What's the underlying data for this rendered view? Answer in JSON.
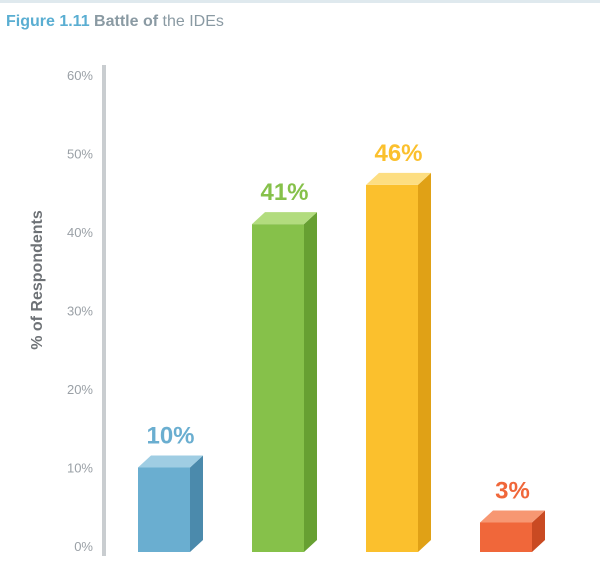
{
  "figure": {
    "number": "Figure 1.11",
    "title_bold": "Battle of",
    "title_rest": "the IDEs"
  },
  "chart_data": {
    "type": "bar",
    "title": "Battle of the IDEs",
    "ylabel": "% of Respondents",
    "xlabel": "",
    "ylim": [
      0,
      60
    ],
    "yticks": [
      0,
      10,
      20,
      30,
      40,
      50,
      60
    ],
    "ytick_labels": [
      "0%",
      "10%",
      "20%",
      "30%",
      "40%",
      "50%",
      "60%"
    ],
    "categories": [
      "",
      "",
      "",
      ""
    ],
    "values": [
      10,
      41,
      46,
      3
    ],
    "data_labels": [
      "10%",
      "41%",
      "46%",
      "3%"
    ],
    "grid": false,
    "legend": "none",
    "colors": {
      "front": [
        "#6aaed0",
        "#86c14a",
        "#fbc02d",
        "#f0673a"
      ],
      "side": [
        "#4b8aac",
        "#67a032",
        "#e0a116",
        "#c94a22"
      ],
      "top": [
        "#9fcde3",
        "#b2dc7e",
        "#fdde82",
        "#f79772"
      ],
      "label": [
        "#6aaed0",
        "#86c14a",
        "#fbc02d",
        "#f0673a"
      ]
    }
  }
}
